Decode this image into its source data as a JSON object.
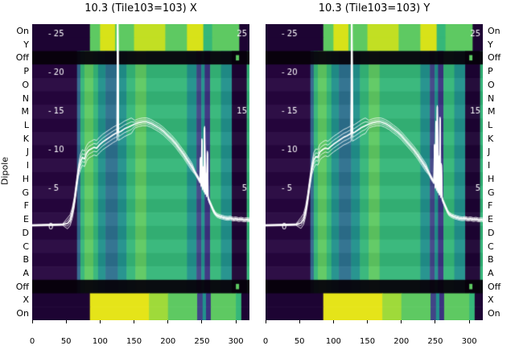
{
  "figure": {
    "ylabel": "Dipole"
  },
  "chart_data": {
    "type": "heatmap",
    "x_range": [
      0,
      320
    ],
    "x_ticks": [
      0,
      50,
      100,
      150,
      200,
      250,
      300
    ],
    "amp_axis": {
      "min": 0,
      "max": 25,
      "left_labels": [
        {
          "text": "- 25",
          "amp": 25
        },
        {
          "text": "- 20",
          "amp": 20
        },
        {
          "text": "- 15",
          "amp": 15
        },
        {
          "text": "- 10",
          "amp": 10
        },
        {
          "text": "- 5",
          "amp": 5
        },
        {
          "text": "0",
          "amp": 0
        }
      ],
      "right_labels": [
        {
          "text": "25",
          "amp": 25
        },
        {
          "text": "15",
          "amp": 15
        },
        {
          "text": "5",
          "amp": 5
        }
      ]
    },
    "rows": [
      {
        "label": "On",
        "type": "top_on"
      },
      {
        "label": "Y",
        "type": "top_on"
      },
      {
        "label": "Off",
        "type": "off"
      },
      {
        "label": "P",
        "type": "letter"
      },
      {
        "label": "O",
        "type": "letter"
      },
      {
        "label": "N",
        "type": "letter"
      },
      {
        "label": "M",
        "type": "letter"
      },
      {
        "label": "L",
        "type": "letter"
      },
      {
        "label": "K",
        "type": "letter"
      },
      {
        "label": "J",
        "type": "letter"
      },
      {
        "label": "I",
        "type": "letter"
      },
      {
        "label": "H",
        "type": "letter"
      },
      {
        "label": "G",
        "type": "letter"
      },
      {
        "label": "F",
        "type": "letter"
      },
      {
        "label": "E",
        "type": "letter"
      },
      {
        "label": "D",
        "type": "letter"
      },
      {
        "label": "C",
        "type": "letter"
      },
      {
        "label": "B",
        "type": "letter"
      },
      {
        "label": "A",
        "type": "letter"
      },
      {
        "label": "Off",
        "type": "off"
      },
      {
        "label": "X",
        "type": "bottom_on"
      },
      {
        "label": "On",
        "type": "bottom_on"
      }
    ],
    "band_sets": {
      "letter": [
        [
          0,
          66,
          "#26063f"
        ],
        [
          66,
          71,
          "#31688e"
        ],
        [
          71,
          77,
          "#35b779"
        ],
        [
          77,
          90,
          "#5ec962"
        ],
        [
          90,
          97,
          "#35b779"
        ],
        [
          97,
          108,
          "#21918c"
        ],
        [
          108,
          126,
          "#2d708e"
        ],
        [
          126,
          139,
          "#21918c"
        ],
        [
          139,
          152,
          "#35b779"
        ],
        [
          152,
          168,
          "#5ec962"
        ],
        [
          168,
          228,
          "#35b779"
        ],
        [
          228,
          242,
          "#21918c"
        ],
        [
          242,
          249,
          "#414487"
        ],
        [
          249,
          254,
          "#21918c"
        ],
        [
          254,
          262,
          "#3b3280"
        ],
        [
          262,
          278,
          "#35b779"
        ],
        [
          278,
          294,
          "#21918c"
        ],
        [
          294,
          316,
          "#1d0433"
        ],
        [
          316,
          320,
          "#35b779"
        ]
      ],
      "top_on": [
        [
          0,
          85,
          "#1d0433"
        ],
        [
          85,
          100,
          "#5ec962"
        ],
        [
          100,
          122,
          "#d8e219"
        ],
        [
          122,
          150,
          "#5ec962"
        ],
        [
          150,
          196,
          "#c2df23"
        ],
        [
          196,
          228,
          "#5ec962"
        ],
        [
          228,
          252,
          "#d8e219"
        ],
        [
          252,
          265,
          "#35b779"
        ],
        [
          265,
          305,
          "#5ec962"
        ],
        [
          305,
          320,
          "#1d0433"
        ]
      ],
      "bottom_on": [
        [
          0,
          85,
          "#1d0433"
        ],
        [
          85,
          172,
          "#e5e419"
        ],
        [
          172,
          200,
          "#9fda3a"
        ],
        [
          200,
          243,
          "#5ec962"
        ],
        [
          243,
          251,
          "#414487"
        ],
        [
          251,
          256,
          "#21918c"
        ],
        [
          256,
          263,
          "#3b3280"
        ],
        [
          263,
          300,
          "#5ec962"
        ],
        [
          300,
          308,
          "#35b779"
        ],
        [
          308,
          320,
          "#1d0433"
        ]
      ]
    },
    "off_overlay": {
      "color": "rgba(6,1,10,0.94)",
      "speck_color": "#5ec962",
      "speck_x": 300
    },
    "line_color": "#ffffff",
    "panels": [
      {
        "title": "10.3 (Tile103=103) X",
        "line": [
          [
            0,
            0.2
          ],
          [
            25,
            0.25
          ],
          [
            45,
            0.3
          ],
          [
            52,
            0.45
          ],
          [
            56,
            0.9
          ],
          [
            59,
            1.8
          ],
          [
            62,
            3.2
          ],
          [
            65,
            5.2
          ],
          [
            68,
            7.2
          ],
          [
            71,
            8.4
          ],
          [
            74,
            9.0
          ],
          [
            77,
            8.8
          ],
          [
            80,
            9.5
          ],
          [
            83,
            9.9
          ],
          [
            87,
            10.1
          ],
          [
            91,
            10.3
          ],
          [
            95,
            10.2
          ],
          [
            99,
            10.6
          ],
          [
            104,
            11.0
          ],
          [
            109,
            11.3
          ],
          [
            114,
            11.6
          ],
          [
            119,
            11.9
          ],
          [
            123,
            12.1
          ],
          [
            125,
            12.2
          ],
          [
            126,
            31
          ],
          [
            127,
            12.2
          ],
          [
            131,
            12.4
          ],
          [
            136,
            12.7
          ],
          [
            141,
            12.9
          ],
          [
            146,
            13.1
          ],
          [
            151,
            13.3
          ],
          [
            157,
            13.5
          ],
          [
            163,
            13.6
          ],
          [
            169,
            13.6
          ],
          [
            175,
            13.4
          ],
          [
            181,
            13.1
          ],
          [
            187,
            12.8
          ],
          [
            193,
            12.4
          ],
          [
            199,
            11.9
          ],
          [
            205,
            11.4
          ],
          [
            211,
            10.8
          ],
          [
            217,
            10.1
          ],
          [
            223,
            9.4
          ],
          [
            229,
            8.6
          ],
          [
            235,
            7.8
          ],
          [
            240,
            7.0
          ],
          [
            244,
            6.4
          ],
          [
            247,
            5.9
          ],
          [
            248,
            8.8
          ],
          [
            249,
            5.4
          ],
          [
            250,
            11.2
          ],
          [
            251,
            5.0
          ],
          [
            252,
            7.6
          ],
          [
            253,
            4.7
          ],
          [
            254,
            12.8
          ],
          [
            255,
            4.4
          ],
          [
            256,
            6.8
          ],
          [
            257,
            4.1
          ],
          [
            258,
            9.6
          ],
          [
            259,
            3.8
          ],
          [
            261,
            3.3
          ],
          [
            263,
            2.9
          ],
          [
            265,
            2.5
          ],
          [
            267,
            2.1
          ],
          [
            269,
            1.8
          ],
          [
            272,
            1.5
          ],
          [
            276,
            1.35
          ],
          [
            280,
            1.25
          ],
          [
            284,
            1.15
          ],
          [
            288,
            1.1
          ],
          [
            292,
            1.15
          ],
          [
            296,
            1.0
          ],
          [
            300,
            1.05
          ],
          [
            304,
            0.95
          ],
          [
            308,
            1.0
          ],
          [
            312,
            0.9
          ],
          [
            316,
            0.95
          ],
          [
            320,
            0.9
          ]
        ]
      },
      {
        "title": "10.3 (Tile103=103) Y",
        "line": [
          [
            0,
            0.2
          ],
          [
            25,
            0.25
          ],
          [
            45,
            0.3
          ],
          [
            52,
            0.5
          ],
          [
            56,
            1.0
          ],
          [
            59,
            2.0
          ],
          [
            62,
            3.6
          ],
          [
            65,
            5.6
          ],
          [
            68,
            7.4
          ],
          [
            71,
            8.6
          ],
          [
            74,
            9.1
          ],
          [
            77,
            9.0
          ],
          [
            80,
            9.7
          ],
          [
            84,
            10.0
          ],
          [
            88,
            10.2
          ],
          [
            92,
            10.1
          ],
          [
            96,
            10.4
          ],
          [
            100,
            10.7
          ],
          [
            105,
            11.0
          ],
          [
            110,
            11.3
          ],
          [
            115,
            11.6
          ],
          [
            120,
            11.8
          ],
          [
            124,
            12.0
          ],
          [
            126,
            12.1
          ],
          [
            127,
            32
          ],
          [
            128,
            12.1
          ],
          [
            132,
            12.3
          ],
          [
            137,
            12.6
          ],
          [
            142,
            12.9
          ],
          [
            147,
            13.1
          ],
          [
            152,
            13.3
          ],
          [
            158,
            13.5
          ],
          [
            164,
            13.6
          ],
          [
            170,
            13.6
          ],
          [
            176,
            13.4
          ],
          [
            182,
            13.1
          ],
          [
            188,
            12.7
          ],
          [
            194,
            12.3
          ],
          [
            200,
            11.8
          ],
          [
            206,
            11.2
          ],
          [
            212,
            10.6
          ],
          [
            218,
            10.0
          ],
          [
            224,
            9.3
          ],
          [
            230,
            8.5
          ],
          [
            236,
            7.7
          ],
          [
            241,
            6.9
          ],
          [
            245,
            6.2
          ],
          [
            248,
            5.8
          ],
          [
            249,
            10.5
          ],
          [
            250,
            5.2
          ],
          [
            251,
            13.5
          ],
          [
            252,
            4.9
          ],
          [
            253,
            15.5
          ],
          [
            254,
            4.6
          ],
          [
            255,
            9.0
          ],
          [
            256,
            4.3
          ],
          [
            257,
            14.0
          ],
          [
            258,
            4.0
          ],
          [
            259,
            8.0
          ],
          [
            260,
            3.7
          ],
          [
            262,
            3.2
          ],
          [
            264,
            2.8
          ],
          [
            266,
            2.4
          ],
          [
            268,
            2.0
          ],
          [
            270,
            1.7
          ],
          [
            274,
            1.45
          ],
          [
            278,
            1.3
          ],
          [
            282,
            1.2
          ],
          [
            286,
            1.1
          ],
          [
            290,
            1.05
          ],
          [
            294,
            1.1
          ],
          [
            298,
            1.0
          ],
          [
            302,
            1.05
          ],
          [
            306,
            0.95
          ],
          [
            310,
            1.0
          ],
          [
            314,
            0.9
          ],
          [
            318,
            0.95
          ],
          [
            320,
            0.9
          ]
        ]
      }
    ]
  }
}
